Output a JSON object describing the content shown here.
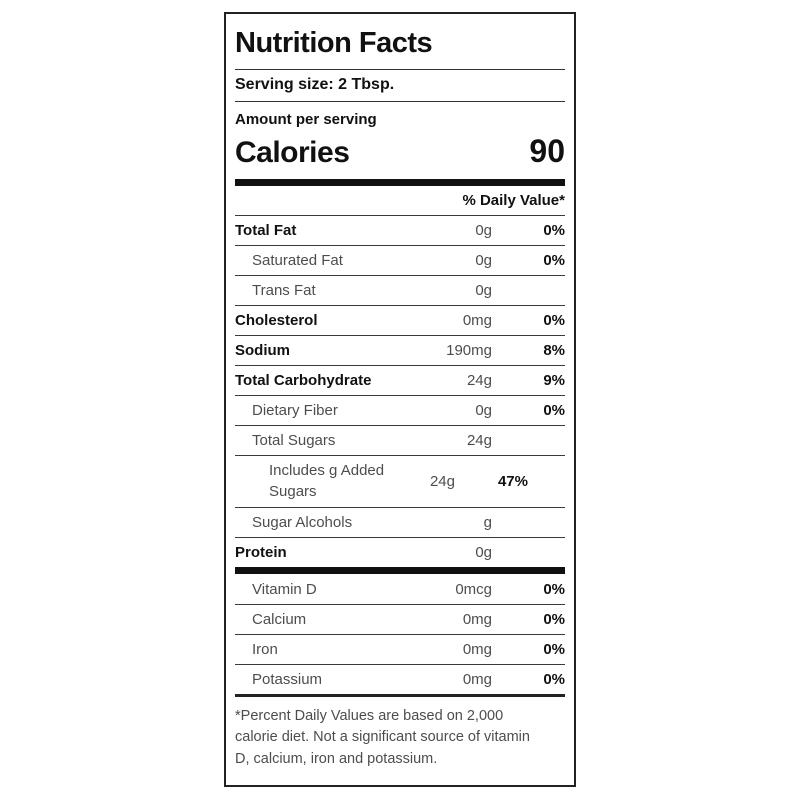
{
  "label": {
    "title": "Nutrition Facts",
    "serving_size": "Serving size: 2 Tbsp.",
    "amount_per_serving": "Amount per serving",
    "calories_label": "Calories",
    "calories_value": "90",
    "daily_value_header": "% Daily Value*",
    "footnote": "*Percent Daily Values are based on 2,000 calorie diet. Not a significant source of vitamin D, calcium, iron and potassium."
  },
  "rows": [
    {
      "label": "Total Fat",
      "amount": "0g",
      "pct": "0%"
    },
    {
      "label": "Saturated Fat",
      "amount": "0g",
      "pct": "0%"
    },
    {
      "label": "Trans Fat",
      "amount": "0g",
      "pct": ""
    },
    {
      "label": "Cholesterol",
      "amount": "0mg",
      "pct": "0%"
    },
    {
      "label": "Sodium",
      "amount": "190mg",
      "pct": "8%"
    },
    {
      "label": "Total Carbohydrate",
      "amount": "24g",
      "pct": "9%"
    },
    {
      "label": "Dietary Fiber",
      "amount": "0g",
      "pct": "0%"
    },
    {
      "label": "Total Sugars",
      "amount": "24g",
      "pct": ""
    },
    {
      "label": "Includes g Added Sugars",
      "amount": "24g",
      "pct": "47%"
    },
    {
      "label": "Sugar Alcohols",
      "amount": "g",
      "pct": ""
    },
    {
      "label": "Protein",
      "amount": "0g",
      "pct": ""
    }
  ],
  "vitamins": [
    {
      "label": "Vitamin D",
      "amount": "0mcg",
      "pct": "0%"
    },
    {
      "label": "Calcium",
      "amount": "0mg",
      "pct": "0%"
    },
    {
      "label": "Iron",
      "amount": "0mg",
      "pct": "0%"
    },
    {
      "label": "Potassium",
      "amount": "0mg",
      "pct": "0%"
    }
  ],
  "colors": {
    "text_bold": "#111111",
    "text_regular": "#4d4d4d",
    "border": "#222222",
    "separator_bar": "#111111"
  }
}
